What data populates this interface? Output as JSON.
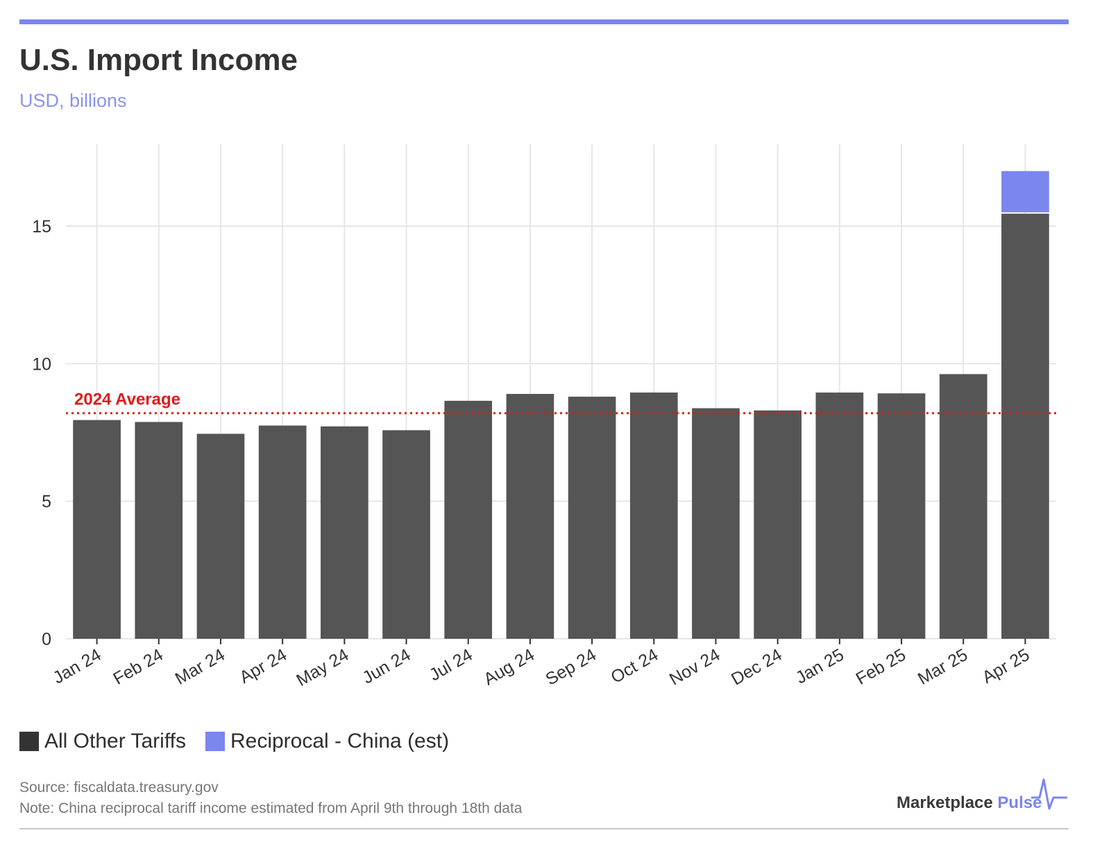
{
  "header": {
    "title": "U.S. Import Income",
    "subtitle": "USD, billions"
  },
  "chart_data": {
    "type": "bar",
    "stacked": true,
    "categories": [
      "Jan 24",
      "Feb 24",
      "Mar 24",
      "Apr 24",
      "May 24",
      "Jun 24",
      "Jul 24",
      "Aug 24",
      "Sep 24",
      "Oct 24",
      "Nov 24",
      "Dec 24",
      "Jan 25",
      "Feb 25",
      "Mar 25",
      "Apr 25"
    ],
    "series": [
      {
        "name": "All Other Tariffs",
        "color": "#555555",
        "values": [
          7.95,
          7.88,
          7.45,
          7.75,
          7.72,
          7.58,
          8.65,
          8.9,
          8.8,
          8.95,
          8.38,
          8.3,
          8.95,
          8.92,
          9.62,
          15.45
        ]
      },
      {
        "name": "Reciprocal - China (est)",
        "color": "#7B86EE",
        "values": [
          0,
          0,
          0,
          0,
          0,
          0,
          0,
          0,
          0,
          0,
          0,
          0,
          0,
          0,
          0,
          1.55
        ]
      }
    ],
    "ylim": [
      0,
      17.5
    ],
    "yticks": [
      0,
      5,
      10,
      15
    ],
    "grid": true,
    "reference_line": {
      "label": "2024 Average",
      "value": 8.2,
      "color": "#E0191B"
    },
    "legend_position": "bottom-left"
  },
  "legend": {
    "items": [
      {
        "label": "All Other Tariffs",
        "color": "#333333"
      },
      {
        "label": "Reciprocal - China (est)",
        "color": "#7B86EE"
      }
    ]
  },
  "footer": {
    "source": "Source: fiscaldata.treasury.gov",
    "note": "Note: China reciprocal tariff income estimated from April 9th through 18th data",
    "brand_main": "Marketplace",
    "brand_accent": "Pulse"
  }
}
